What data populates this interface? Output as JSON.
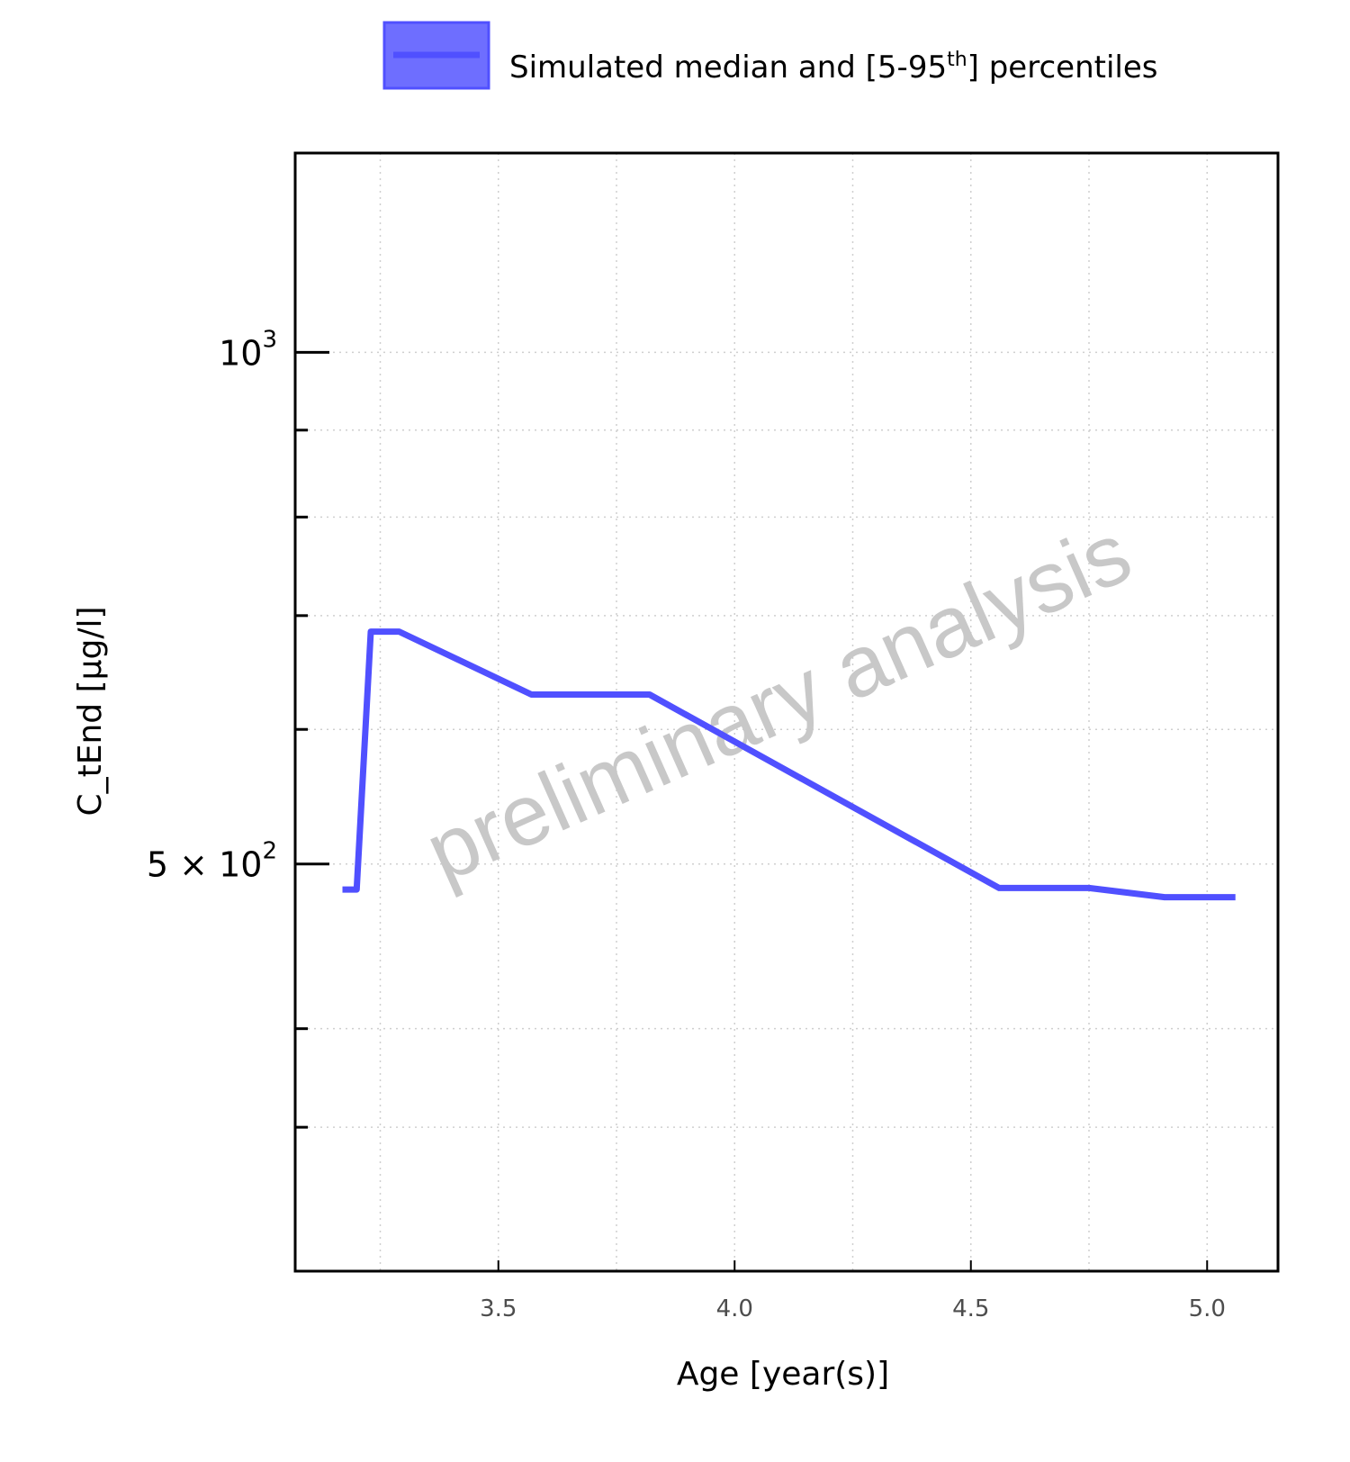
{
  "chart_data": {
    "type": "line",
    "xlabel": "Age [year(s)]",
    "ylabel": "C_tEnd [µg/l]",
    "xlim": [
      3.07,
      5.15
    ],
    "ylim": [
      288,
      1310
    ],
    "y_scale": "log",
    "grid": true,
    "legend_position": "top",
    "x_ticks": [
      3.5,
      4.0,
      4.5,
      5.0
    ],
    "x_tick_labels": [
      "3.5",
      "4.0",
      "4.5",
      "5.0"
    ],
    "y_ticks": [
      {
        "value": 1000,
        "mantissa": "",
        "base": "10",
        "exp": "3"
      },
      {
        "value": 500,
        "mantissa": "5 × ",
        "base": "10",
        "exp": "2"
      }
    ],
    "y_minor_ticks": [
      350,
      400,
      600,
      700,
      800,
      900
    ],
    "legend": {
      "label_main": "Simulated median and [5-95",
      "label_sup": "th",
      "label_end": "] percentiles"
    },
    "series": [
      {
        "name": "Simulated median and [5-95th] percentiles",
        "color": "#5050ff",
        "band_color": "#6e6eff",
        "x": [
          3.17,
          3.2,
          3.23,
          3.29,
          3.57,
          3.82,
          4.56,
          4.75,
          4.91,
          5.06
        ],
        "y": [
          483,
          483,
          685,
          685,
          629,
          629,
          484,
          484,
          478,
          478
        ]
      }
    ],
    "watermark": "preliminary analysis"
  }
}
